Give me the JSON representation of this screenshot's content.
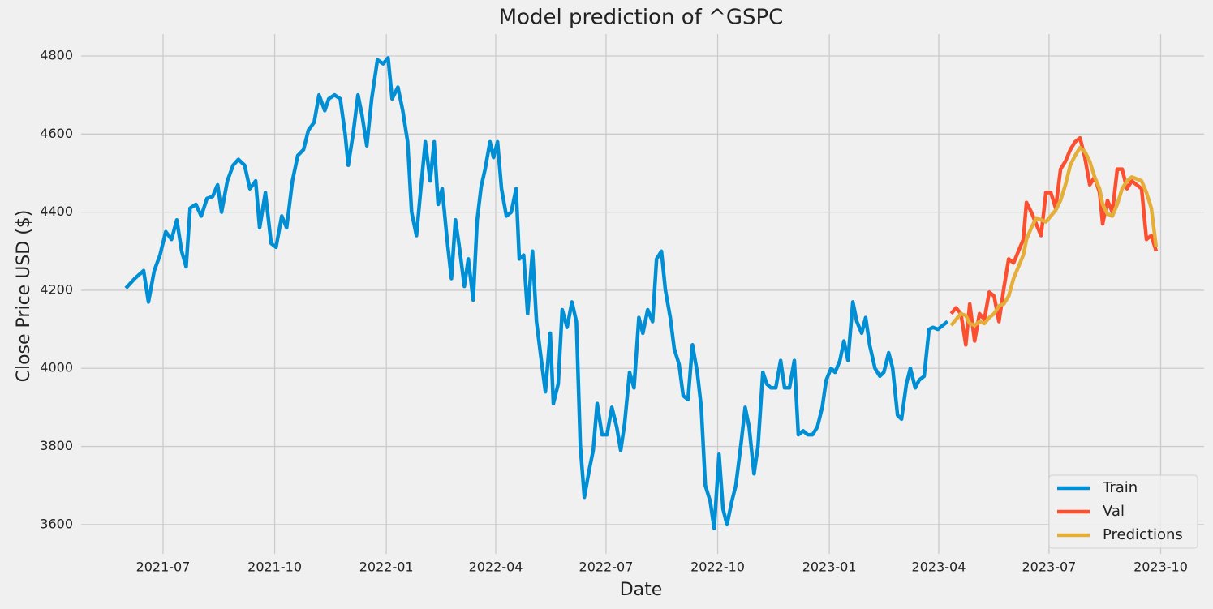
{
  "chart_data": {
    "type": "line",
    "title": "Model prediction of ^GSPC",
    "xlabel": "Date",
    "ylabel": "Close Price  USD ($)",
    "xlim": [
      2021.311,
      2023.846
    ],
    "xticks": [
      {
        "value": 2021.496,
        "label": "2021-07"
      },
      {
        "value": 2021.748,
        "label": "2021-10"
      },
      {
        "value": 2022.0,
        "label": "2022-01"
      },
      {
        "value": 2022.247,
        "label": "2022-04"
      },
      {
        "value": 2022.496,
        "label": "2022-07"
      },
      {
        "value": 2022.748,
        "label": "2022-10"
      },
      {
        "value": 2023.0,
        "label": "2023-01"
      },
      {
        "value": 2023.247,
        "label": "2023-04"
      },
      {
        "value": 2023.496,
        "label": "2023-07"
      },
      {
        "value": 2023.748,
        "label": "2023-10"
      }
    ],
    "ylim": [
      3525,
      4856
    ],
    "yticks": [
      3600,
      3800,
      4000,
      4200,
      4400,
      4600,
      4800
    ],
    "grid": true,
    "legend": "lower right",
    "series": [
      {
        "name": "Train",
        "color": "#008fd5",
        "x": [
          2021.412,
          2021.432,
          2021.452,
          2021.463,
          2021.476,
          2021.489,
          2021.502,
          2021.515,
          2021.527,
          2021.538,
          2021.548,
          2021.557,
          2021.57,
          2021.582,
          2021.595,
          2021.608,
          2021.619,
          2021.628,
          2021.641,
          2021.654,
          2021.666,
          2021.68,
          2021.692,
          2021.705,
          2021.714,
          2021.727,
          2021.74,
          2021.751,
          2021.764,
          2021.775,
          2021.788,
          2021.8,
          2021.813,
          2021.824,
          2021.837,
          2021.848,
          2021.861,
          2021.87,
          2021.883,
          2021.896,
          2021.907,
          2021.914,
          2021.925,
          2021.936,
          2021.945,
          2021.956,
          2021.967,
          2021.98,
          2021.993,
          2022.004,
          2022.013,
          2022.026,
          2022.037,
          2022.048,
          2022.057,
          2022.068,
          2022.077,
          2022.088,
          2022.099,
          2022.108,
          2022.117,
          2022.126,
          2022.137,
          2022.147,
          2022.156,
          2022.165,
          2022.176,
          2022.185,
          2022.196,
          2022.205,
          2022.214,
          2022.223,
          2022.234,
          2022.242,
          2022.251,
          2022.26,
          2022.271,
          2022.282,
          2022.293,
          2022.3,
          2022.31,
          2022.319,
          2022.33,
          2022.339,
          2022.35,
          2022.359,
          2022.37,
          2022.377,
          2022.388,
          2022.397,
          2022.408,
          2022.419,
          2022.429,
          2022.438,
          2022.447,
          2022.458,
          2022.467,
          2022.476,
          2022.487,
          2022.498,
          2022.509,
          2022.52,
          2022.529,
          2022.538,
          2022.549,
          2022.559,
          2022.57,
          2022.579,
          2022.59,
          2022.601,
          2022.61,
          2022.621,
          2022.63,
          2022.641,
          2022.65,
          2022.661,
          2022.67,
          2022.681,
          2022.691,
          2022.702,
          2022.711,
          2022.72,
          2022.731,
          2022.74,
          2022.751,
          2022.76,
          2022.769,
          2022.78,
          2022.789,
          2022.8,
          2022.81,
          2022.819,
          2022.83,
          2022.839,
          2022.85,
          2022.859,
          2022.868,
          2022.879,
          2022.89,
          2022.899,
          2022.91,
          2022.921,
          2022.93,
          2022.941,
          2022.951,
          2022.962,
          2022.973,
          2022.984,
          2022.993,
          2023.004,
          2023.013,
          2023.024,
          2023.033,
          2023.042,
          2023.053,
          2023.062,
          2023.073,
          2023.082,
          2023.091,
          2023.103,
          2023.114,
          2023.123,
          2023.134,
          2023.143,
          2023.154,
          2023.163,
          2023.174,
          2023.183,
          2023.194,
          2023.203,
          2023.214,
          2023.225,
          2023.234,
          2023.245,
          2023.256,
          2023.267
        ],
        "values": [
          4205,
          4230,
          4250,
          4170,
          4250,
          4290,
          4350,
          4330,
          4380,
          4300,
          4260,
          4410,
          4420,
          4390,
          4435,
          4440,
          4470,
          4400,
          4480,
          4520,
          4535,
          4520,
          4460,
          4480,
          4360,
          4450,
          4320,
          4310,
          4390,
          4360,
          4480,
          4545,
          4560,
          4610,
          4630,
          4700,
          4660,
          4690,
          4700,
          4690,
          4600,
          4520,
          4600,
          4700,
          4650,
          4570,
          4690,
          4790,
          4780,
          4795,
          4690,
          4720,
          4660,
          4580,
          4400,
          4340,
          4450,
          4580,
          4480,
          4580,
          4420,
          4460,
          4330,
          4230,
          4380,
          4310,
          4210,
          4280,
          4175,
          4380,
          4465,
          4510,
          4580,
          4540,
          4580,
          4460,
          4390,
          4400,
          4460,
          4280,
          4290,
          4140,
          4300,
          4120,
          4020,
          3940,
          4090,
          3910,
          3960,
          4150,
          4105,
          4170,
          4120,
          3800,
          3670,
          3740,
          3790,
          3910,
          3830,
          3830,
          3900,
          3850,
          3790,
          3860,
          3990,
          3950,
          4130,
          4090,
          4150,
          4120,
          4280,
          4300,
          4200,
          4130,
          4050,
          4010,
          3930,
          3920,
          4060,
          3990,
          3900,
          3700,
          3660,
          3590,
          3780,
          3640,
          3600,
          3660,
          3700,
          3800,
          3900,
          3850,
          3730,
          3800,
          3990,
          3960,
          3950,
          3950,
          4020,
          3950,
          3950,
          4020,
          3830,
          3840,
          3830,
          3830,
          3850,
          3900,
          3970,
          4000,
          3990,
          4020,
          4070,
          4020,
          4170,
          4120,
          4090,
          4130,
          4060,
          4000,
          3980,
          3990,
          4040,
          4000,
          3880,
          3870,
          3960,
          4000,
          3950,
          3970,
          3980,
          4100,
          4105,
          4100,
          4110,
          4120
        ]
      },
      {
        "name": "Val",
        "color": "#fc4f30",
        "x": [
          2023.275,
          2023.286,
          2023.297,
          2023.308,
          2023.317,
          2023.328,
          2023.339,
          2023.35,
          2023.361,
          2023.372,
          2023.383,
          2023.394,
          2023.405,
          2023.416,
          2023.427,
          2023.438,
          2023.445,
          2023.456,
          2023.467,
          2023.478,
          2023.489,
          2023.5,
          2023.511,
          2023.522,
          2023.533,
          2023.544,
          2023.555,
          2023.566,
          2023.577,
          2023.588,
          2023.599,
          2023.61,
          2023.617,
          2023.628,
          2023.639,
          2023.65,
          2023.661,
          2023.672,
          2023.683,
          2023.694,
          2023.705,
          2023.716,
          2023.727,
          2023.738
        ],
        "values": [
          4140,
          4155,
          4140,
          4060,
          4165,
          4070,
          4140,
          4125,
          4195,
          4185,
          4120,
          4205,
          4280,
          4270,
          4300,
          4330,
          4425,
          4400,
          4370,
          4340,
          4450,
          4450,
          4410,
          4510,
          4530,
          4560,
          4580,
          4590,
          4540,
          4470,
          4490,
          4450,
          4370,
          4430,
          4400,
          4510,
          4510,
          4460,
          4480,
          4470,
          4460,
          4330,
          4340,
          4300
        ]
      },
      {
        "name": "Predictions",
        "color": "#e5ae38",
        "x": [
          2023.275,
          2023.286,
          2023.297,
          2023.308,
          2023.317,
          2023.328,
          2023.339,
          2023.35,
          2023.361,
          2023.372,
          2023.383,
          2023.394,
          2023.405,
          2023.416,
          2023.427,
          2023.438,
          2023.445,
          2023.456,
          2023.467,
          2023.478,
          2023.489,
          2023.5,
          2023.511,
          2023.522,
          2023.533,
          2023.544,
          2023.555,
          2023.566,
          2023.577,
          2023.588,
          2023.599,
          2023.61,
          2023.617,
          2023.628,
          2023.639,
          2023.65,
          2023.661,
          2023.672,
          2023.683,
          2023.694,
          2023.705,
          2023.716,
          2023.727,
          2023.738
        ],
        "values": [
          4110,
          4125,
          4140,
          4135,
          4115,
          4110,
          4120,
          4115,
          4130,
          4140,
          4160,
          4165,
          4185,
          4230,
          4260,
          4290,
          4330,
          4360,
          4385,
          4380,
          4375,
          4390,
          4405,
          4430,
          4470,
          4520,
          4545,
          4565,
          4555,
          4530,
          4490,
          4460,
          4420,
          4395,
          4390,
          4420,
          4460,
          4480,
          4490,
          4485,
          4480,
          4450,
          4410,
          4310
        ]
      }
    ]
  }
}
